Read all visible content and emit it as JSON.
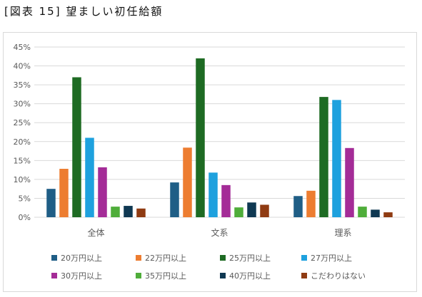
{
  "figure_title": "[図表 15] 望ましい初任給額",
  "chart_data": {
    "type": "bar",
    "categories": [
      "全体",
      "文系",
      "理系"
    ],
    "ylim": [
      0,
      45
    ],
    "yticks": [
      0,
      5,
      10,
      15,
      20,
      25,
      30,
      35,
      40,
      45
    ],
    "ytick_labels": [
      "0%",
      "5%",
      "10%",
      "15%",
      "20%",
      "25%",
      "30%",
      "35%",
      "40%",
      "45%"
    ],
    "grid": true,
    "legend_position": "bottom",
    "series": [
      {
        "name": "20万円以上",
        "color": "#1f5e86",
        "values": [
          7.5,
          9.2,
          5.6
        ]
      },
      {
        "name": "22万円以上",
        "color": "#ed7d31",
        "values": [
          12.8,
          18.4,
          7.0
        ]
      },
      {
        "name": "25万円以上",
        "color": "#1e6b23",
        "values": [
          37.0,
          42.0,
          31.8
        ]
      },
      {
        "name": "27万円以上",
        "color": "#1ea1de",
        "values": [
          21.0,
          11.8,
          31.0
        ]
      },
      {
        "name": "30万円以上",
        "color": "#a42c97",
        "values": [
          13.2,
          8.5,
          18.3
        ]
      },
      {
        "name": "35万円以上",
        "color": "#4fad3a",
        "values": [
          2.8,
          2.6,
          2.8
        ]
      },
      {
        "name": "40万円以上",
        "color": "#0f3852",
        "values": [
          3.0,
          3.9,
          2.0
        ]
      },
      {
        "name": "こだわりはない",
        "color": "#8f3b12",
        "values": [
          2.3,
          3.3,
          1.3
        ]
      }
    ]
  }
}
